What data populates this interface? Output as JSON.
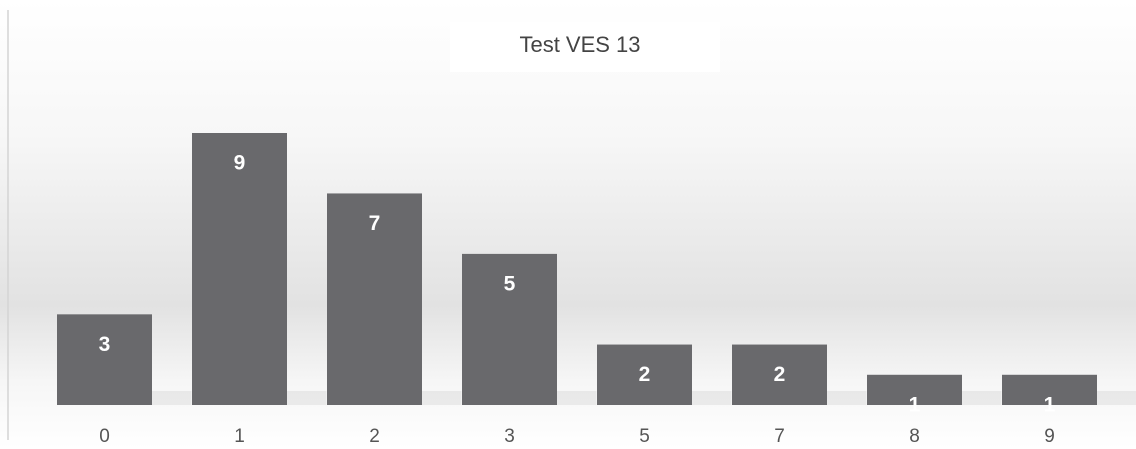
{
  "chart_data": {
    "type": "bar",
    "title": "Test VES 13",
    "categories": [
      "0",
      "1",
      "2",
      "3",
      "5",
      "7",
      "8",
      "9"
    ],
    "values": [
      3,
      9,
      7,
      5,
      2,
      2,
      1,
      1
    ],
    "color": "#69696c"
  }
}
